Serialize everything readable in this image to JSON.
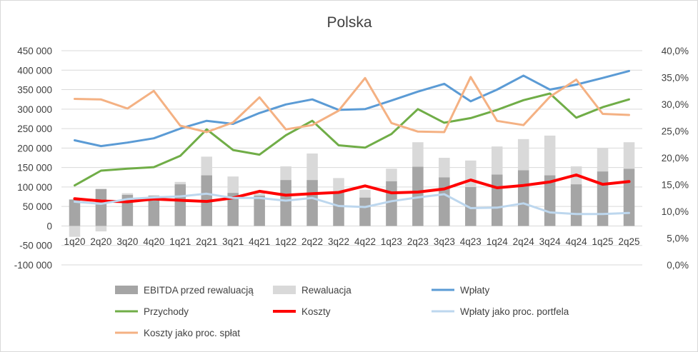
{
  "chart_data": {
    "type": "bar",
    "title": "Polska",
    "categories": [
      "1q20",
      "2q20",
      "3q20",
      "4q20",
      "1q21",
      "2q21",
      "3q21",
      "4q21",
      "1q22",
      "2q22",
      "3q22",
      "4q22",
      "1q23",
      "2q23",
      "3q23",
      "4q23",
      "1q24",
      "2q24",
      "3q24",
      "4q24",
      "1q25",
      "2q25"
    ],
    "y_left": {
      "min": -100000,
      "max": 450000,
      "step": 50000,
      "tick_labels": [
        "-100 000",
        "-50 000",
        "0",
        "50 000",
        "100 000",
        "150 000",
        "200 000",
        "250 000",
        "300 000",
        "350 000",
        "400 000",
        "450 000"
      ]
    },
    "y_right": {
      "min": 0,
      "max": 40,
      "step": 5,
      "tick_labels": [
        "0,0%",
        "5,0%",
        "10,0%",
        "15,0%",
        "20,0%",
        "25,0%",
        "30,0%",
        "35,0%",
        "40,0%"
      ]
    },
    "grid": true,
    "legend_position": "bottom",
    "series": [
      {
        "name": "EBITDA przed rewaluacją",
        "kind": "bar",
        "axis": "left",
        "color": "#a5a5a5",
        "values": [
          68000,
          95000,
          80000,
          77000,
          107000,
          130000,
          85000,
          78000,
          118000,
          118000,
          88000,
          73000,
          115000,
          152000,
          125000,
          100000,
          132000,
          143000,
          130000,
          107000,
          140000,
          147000
        ]
      },
      {
        "name": "Rewaluacja",
        "kind": "bar",
        "axis": "left",
        "color": "#d9d9d9",
        "values": [
          -28000,
          -14000,
          4000,
          2000,
          6000,
          48000,
          42000,
          6000,
          35000,
          68000,
          35000,
          20000,
          32000,
          63000,
          50000,
          68000,
          72000,
          80000,
          102000,
          46000,
          60000,
          68000
        ]
      },
      {
        "name": "Wpłaty",
        "kind": "line",
        "axis": "left",
        "color": "#5b9bd5",
        "values": [
          220000,
          205000,
          214000,
          225000,
          250000,
          270000,
          262000,
          290000,
          312000,
          325000,
          298000,
          300000,
          322000,
          345000,
          365000,
          320000,
          350000,
          386000,
          350000,
          363000,
          380000,
          398000
        ]
      },
      {
        "name": "Przychody",
        "kind": "line",
        "axis": "left",
        "color": "#70ad47",
        "values": [
          104000,
          142000,
          147000,
          151000,
          180000,
          248000,
          195000,
          183000,
          233000,
          270000,
          207000,
          201000,
          236000,
          300000,
          265000,
          277000,
          298000,
          323000,
          340000,
          278000,
          305000,
          325000
        ]
      },
      {
        "name": "Koszty",
        "kind": "line",
        "axis": "left",
        "color": "#ff0000",
        "values": [
          70000,
          64000,
          62000,
          69000,
          66000,
          63000,
          72000,
          89000,
          79000,
          83000,
          86000,
          103000,
          85000,
          87000,
          95000,
          118000,
          98000,
          104000,
          113000,
          131000,
          107000,
          114000
        ]
      },
      {
        "name": "Wpłaty jako proc. portfela",
        "kind": "line",
        "axis": "right",
        "color": "#bdd7ee",
        "values": [
          11.8,
          11.4,
          12.3,
          12.6,
          12.8,
          13.3,
          12.5,
          12.5,
          12.0,
          12.5,
          11.0,
          10.8,
          11.9,
          12.6,
          13.2,
          10.6,
          10.7,
          11.5,
          9.8,
          9.5,
          9.5,
          9.7
        ]
      },
      {
        "name": "Koszty jako proc. spłat",
        "kind": "line",
        "axis": "right",
        "color": "#f4b183",
        "values": [
          31.0,
          30.9,
          29.2,
          32.5,
          26.0,
          24.8,
          26.6,
          31.3,
          25.3,
          26.1,
          28.8,
          34.9,
          26.5,
          24.9,
          24.8,
          35.1,
          26.9,
          26.1,
          31.4,
          34.6,
          28.2,
          28.0
        ]
      }
    ]
  }
}
